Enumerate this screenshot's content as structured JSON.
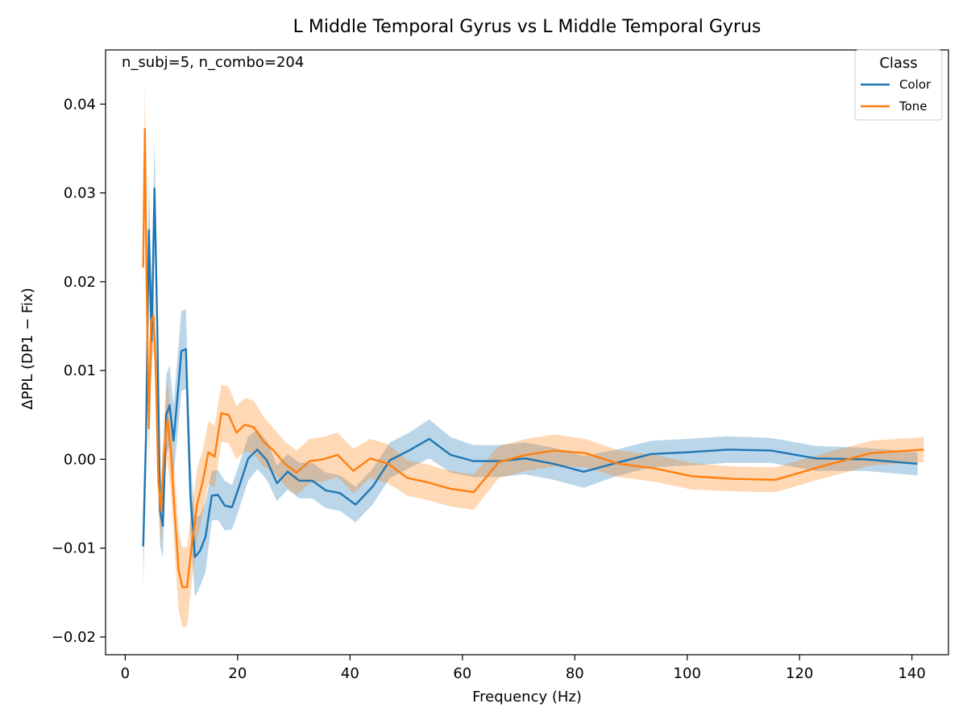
{
  "chart_data": {
    "type": "line",
    "title": "L Middle Temporal Gyrus vs L Middle Temporal Gyrus",
    "xlabel": "Frequency (Hz)",
    "ylabel": "ΔPPL (DP1 − Fix)",
    "annotation": "n_subj=5, n_combo=204",
    "xlim": [
      -3.5,
      146.5
    ],
    "ylim": [
      -0.022,
      0.0461
    ],
    "xticks": [
      0,
      20,
      40,
      60,
      80,
      100,
      120,
      140
    ],
    "xtick_labels": [
      "0",
      "20",
      "40",
      "60",
      "80",
      "100",
      "120",
      "140"
    ],
    "yticks": [
      -0.02,
      -0.01,
      0.0,
      0.01,
      0.02,
      0.03,
      0.04
    ],
    "ytick_labels": [
      "−0.02",
      "−0.01",
      "0.00",
      "0.01",
      "0.02",
      "0.03",
      "0.04"
    ],
    "grid": false,
    "legend": {
      "title": "Class",
      "position": "top-right"
    },
    "series": [
      {
        "name": "Color",
        "color": "#1f77b4",
        "x": [
          3.2,
          3.7,
          4.2,
          4.7,
          5.2,
          5.7,
          6.2,
          6.7,
          7.3,
          7.9,
          8.6,
          9.3,
          10.0,
          10.8,
          11.6,
          12.4,
          13.3,
          14.3,
          15.4,
          16.5,
          17.7,
          19.0,
          20.4,
          21.9,
          23.5,
          25.2,
          27.0,
          28.9,
          31.0,
          33.3,
          35.7,
          38.2,
          41.0,
          44.0,
          47.1,
          50.5,
          54.1,
          57.9,
          62.0,
          66.5,
          71.2,
          76.2,
          81.6,
          87.4,
          93.6,
          100.2,
          107.3,
          114.9,
          123.0,
          131.7,
          141.0
        ],
        "values": [
          -0.0098,
          0.0025,
          0.0258,
          0.0133,
          0.0305,
          0.0148,
          -0.0058,
          -0.0075,
          0.005,
          0.0061,
          0.0021,
          0.0071,
          0.0122,
          0.0124,
          -0.004,
          -0.011,
          -0.0103,
          -0.0087,
          -0.0041,
          -0.004,
          -0.0052,
          -0.0054,
          -0.0028,
          0.0001,
          0.0011,
          -0.0001,
          -0.0027,
          -0.0014,
          -0.0024,
          -0.0024,
          -0.0035,
          -0.0038,
          -0.0051,
          -0.0031,
          -0.0001,
          0.001,
          0.0023,
          0.0005,
          -0.0002,
          -0.0002,
          0.0001,
          -0.0005,
          -0.0014,
          -0.0004,
          0.0006,
          0.0008,
          0.0011,
          0.001,
          0.0001,
          0.0,
          -0.0005
        ],
        "band": [
          0.0045,
          0.005,
          0.006,
          0.006,
          0.0055,
          0.0055,
          0.004,
          0.0035,
          0.0045,
          0.0045,
          0.004,
          0.0045,
          0.0045,
          0.0045,
          0.004,
          0.0045,
          0.004,
          0.004,
          0.0028,
          0.0028,
          0.0028,
          0.0025,
          0.0025,
          0.0025,
          0.0022,
          0.0022,
          0.002,
          0.002,
          0.002,
          0.002,
          0.002,
          0.002,
          0.002,
          0.002,
          0.002,
          0.002,
          0.0022,
          0.002,
          0.0018,
          0.0018,
          0.0018,
          0.0018,
          0.0018,
          0.0015,
          0.0015,
          0.0015,
          0.0015,
          0.0014,
          0.0014,
          0.0013,
          0.0013
        ]
      },
      {
        "name": "Tone",
        "color": "#ff7f0e",
        "x": [
          3.2,
          3.5,
          3.8,
          4.2,
          4.6,
          5.0,
          5.4,
          5.9,
          6.4,
          6.9,
          7.5,
          8.1,
          8.8,
          9.5,
          10.2,
          11.0,
          11.9,
          12.8,
          13.8,
          14.8,
          15.9,
          17.1,
          18.4,
          19.8,
          21.3,
          22.9,
          24.6,
          26.4,
          28.4,
          30.5,
          32.8,
          35.2,
          37.8,
          40.6,
          43.6,
          46.8,
          50.2,
          53.9,
          57.8,
          62.0,
          66.5,
          71.3,
          76.4,
          81.9,
          87.8,
          94.1,
          100.8,
          108.0,
          115.7,
          123.9,
          132.7,
          142.1
        ],
        "values": [
          0.0216,
          0.0372,
          0.02,
          0.0035,
          0.0155,
          0.0162,
          0.011,
          -0.0025,
          -0.0058,
          0.0006,
          0.0045,
          0.001,
          -0.006,
          -0.0125,
          -0.0144,
          -0.0144,
          -0.0093,
          -0.005,
          -0.0025,
          0.0008,
          0.0003,
          0.0052,
          0.005,
          0.003,
          0.0039,
          0.0036,
          0.002,
          0.001,
          -0.0005,
          -0.0015,
          -0.0002,
          0.0,
          0.0005,
          -0.0013,
          0.0001,
          -0.0005,
          -0.0021,
          -0.0026,
          -0.0033,
          -0.0037,
          -0.0003,
          0.0005,
          0.001,
          0.0007,
          -0.0005,
          -0.001,
          -0.0019,
          -0.0022,
          -0.0023,
          -0.0008,
          0.0007,
          0.0011
        ],
        "band": [
          0.003,
          0.005,
          0.006,
          0.005,
          0.0045,
          0.004,
          0.0035,
          0.0035,
          0.004,
          0.004,
          0.0045,
          0.0045,
          0.0045,
          0.0045,
          0.0045,
          0.0045,
          0.004,
          0.004,
          0.0035,
          0.0035,
          0.0035,
          0.0032,
          0.0032,
          0.003,
          0.003,
          0.003,
          0.0028,
          0.0025,
          0.0025,
          0.0025,
          0.0025,
          0.0025,
          0.0025,
          0.0025,
          0.0022,
          0.0022,
          0.002,
          0.002,
          0.002,
          0.002,
          0.0018,
          0.0018,
          0.0018,
          0.0016,
          0.0015,
          0.0015,
          0.0015,
          0.0014,
          0.0014,
          0.0014,
          0.0014,
          0.0014
        ]
      }
    ]
  }
}
